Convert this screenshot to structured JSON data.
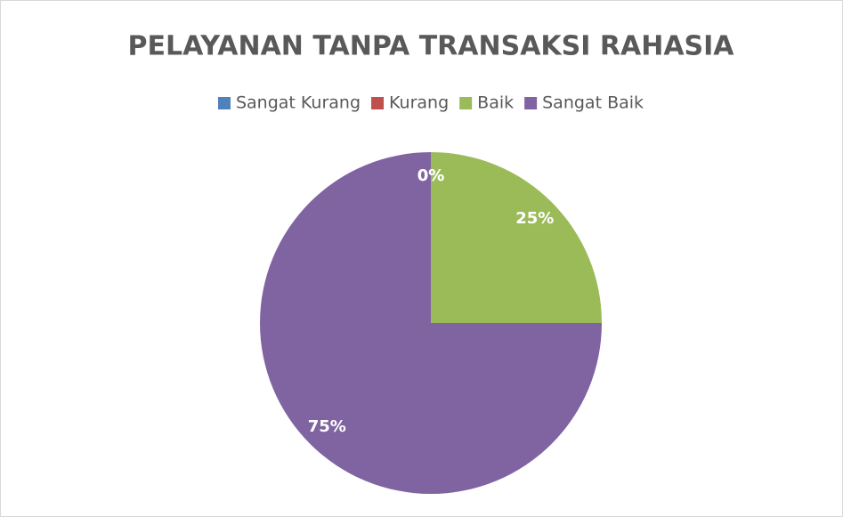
{
  "chart_data": {
    "type": "pie",
    "title": "PELAYANAN TANPA TRANSAKSI RAHASIA",
    "categories": [
      "Sangat Kurang",
      "Kurang",
      "Baik",
      "Sangat Baik"
    ],
    "values": [
      0,
      0,
      25,
      75
    ],
    "value_labels": [
      "0%",
      "0%",
      "25%",
      "75%"
    ],
    "colors": [
      "#4f81bd",
      "#c0504d",
      "#9bbb59",
      "#8064a2"
    ],
    "legend": "top"
  }
}
